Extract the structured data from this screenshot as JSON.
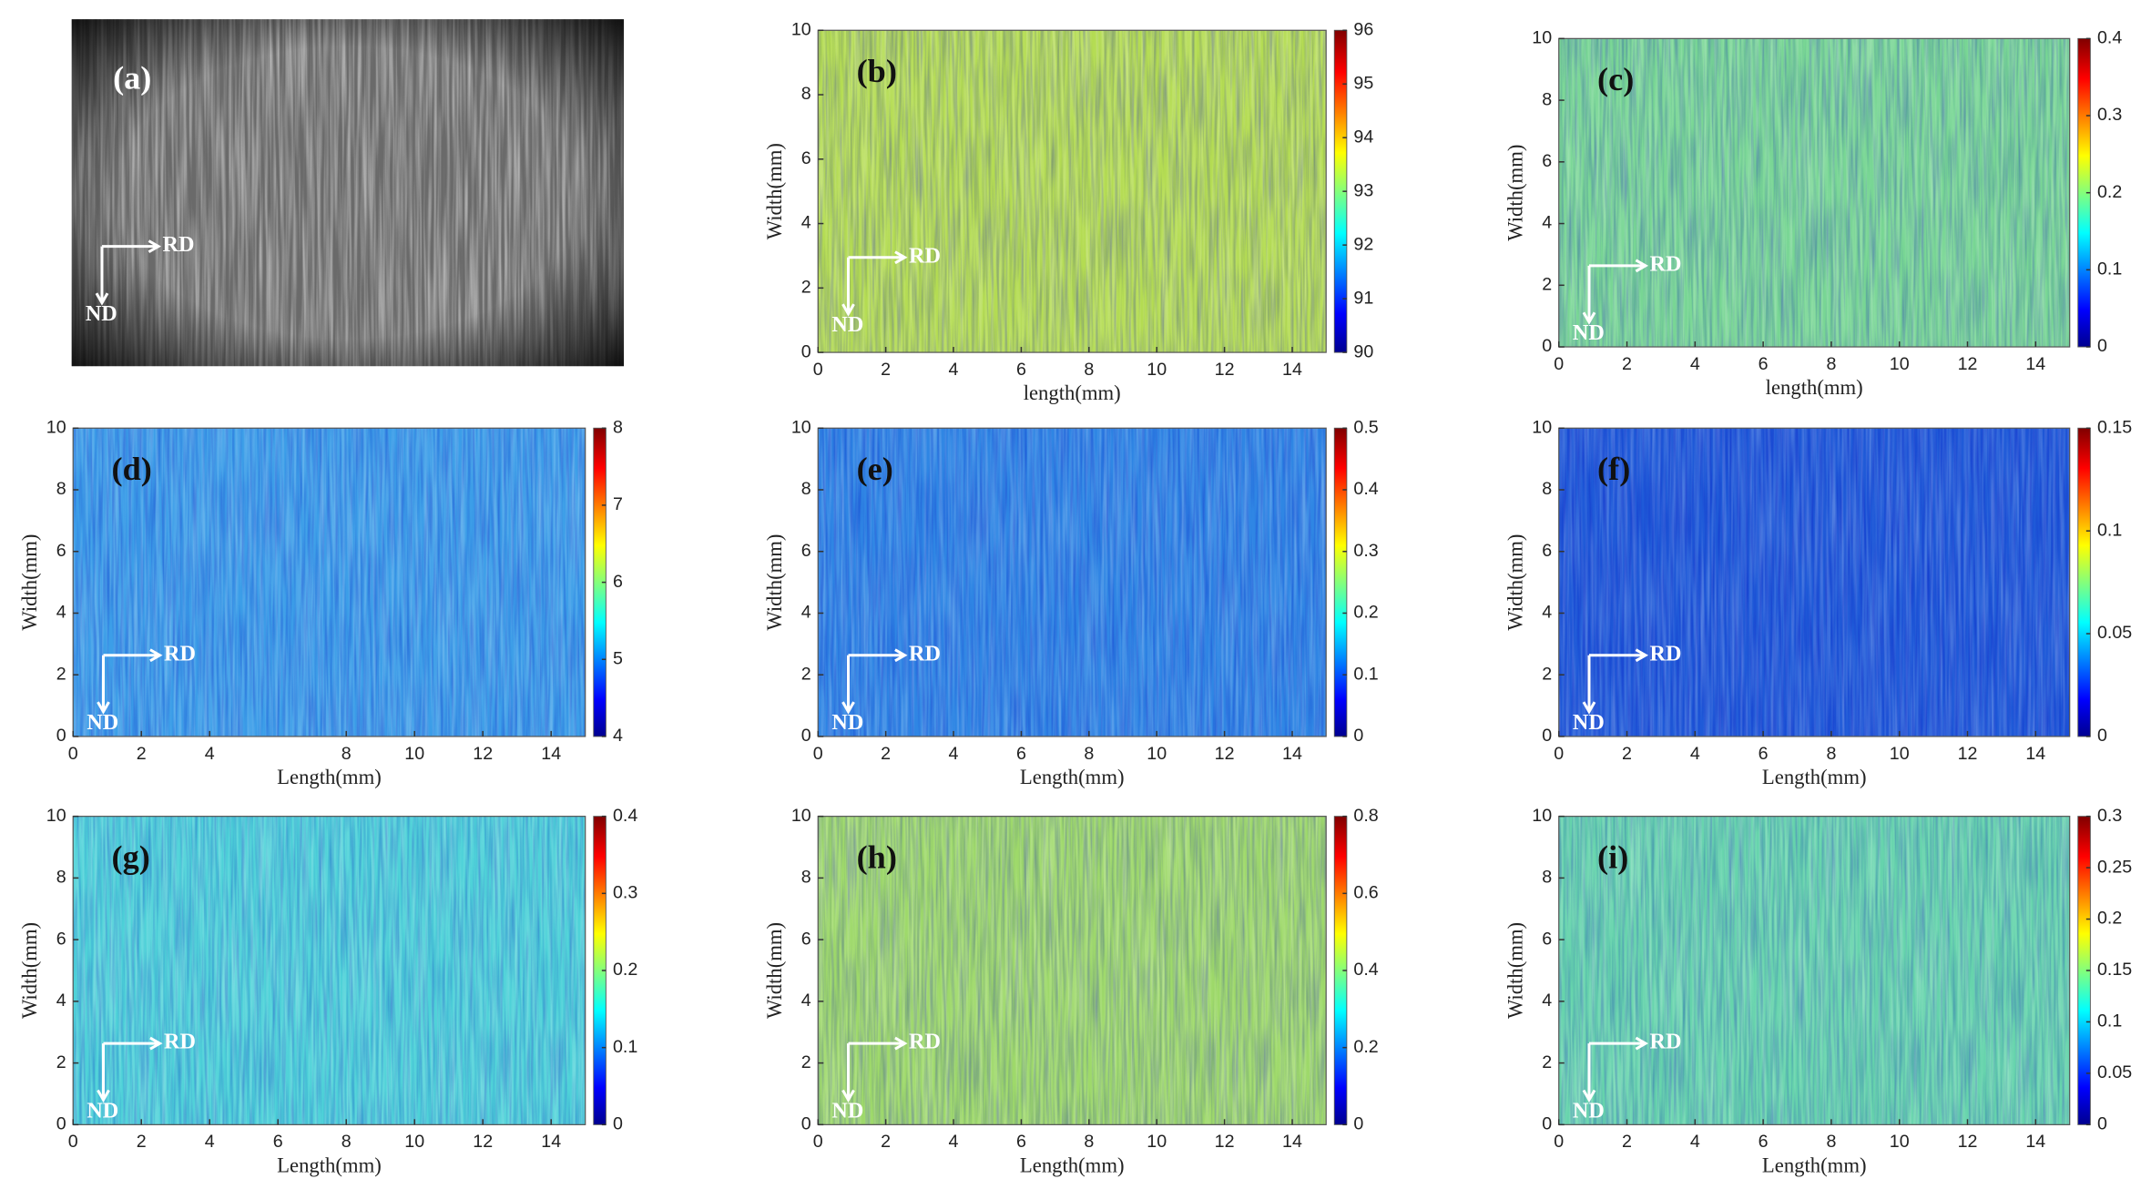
{
  "chart_data": [
    {
      "type": "image",
      "label": "(a)",
      "annotations": [
        "RD",
        "ND"
      ]
    },
    {
      "type": "heatmap",
      "label": "(b)",
      "xlabel": "length(mm)",
      "ylabel": "Width(mm)",
      "xlim": [
        0,
        15
      ],
      "xticks": [
        0,
        2,
        4,
        6,
        8,
        10,
        12,
        14
      ],
      "ylim": [
        0,
        10
      ],
      "yticks": [
        0,
        2,
        4,
        6,
        8,
        10
      ],
      "clim": [
        90,
        96
      ],
      "cticks": [
        90,
        91,
        92,
        93,
        94,
        95,
        96
      ],
      "colormap": "jet",
      "color": "#b4dc52",
      "annotations": [
        "RD",
        "ND"
      ]
    },
    {
      "type": "heatmap",
      "label": "(c)",
      "xlabel": "length(mm)",
      "ylabel": "Width(mm)",
      "xlim": [
        0,
        15
      ],
      "xticks": [
        0,
        2,
        4,
        6,
        8,
        10,
        12,
        14
      ],
      "ylim": [
        0,
        10
      ],
      "yticks": [
        0,
        2,
        4,
        6,
        8,
        10
      ],
      "clim": [
        0,
        0.4
      ],
      "cticks": [
        0,
        0.1,
        0.2,
        0.3,
        0.4
      ],
      "colormap": "jet",
      "color": "#78d694",
      "annotations": [
        "RD",
        "ND"
      ]
    },
    {
      "type": "heatmap",
      "label": "(d)",
      "xlabel": "Length(mm)",
      "ylabel": "Width(mm)",
      "xlim": [
        0,
        15
      ],
      "xticks": [
        0,
        2,
        4,
        8,
        10,
        12,
        14
      ],
      "ylim": [
        0,
        10
      ],
      "yticks": [
        0,
        2,
        4,
        6,
        8,
        10
      ],
      "clim": [
        4,
        8
      ],
      "cticks": [
        4,
        5,
        6,
        7,
        8
      ],
      "colormap": "jet",
      "color": "#3c9ee8",
      "annotations": [
        "RD",
        "ND"
      ]
    },
    {
      "type": "heatmap",
      "label": "(e)",
      "xlabel": "Length(mm)",
      "ylabel": "Width(mm)",
      "xlim": [
        0,
        15
      ],
      "xticks": [
        0,
        2,
        4,
        6,
        8,
        10,
        12,
        14
      ],
      "ylim": [
        0,
        10
      ],
      "yticks": [
        0,
        2,
        4,
        6,
        8,
        10
      ],
      "clim": [
        0,
        0.5
      ],
      "cticks": [
        0,
        0.1,
        0.2,
        0.3,
        0.4,
        0.5
      ],
      "colormap": "jet",
      "color": "#2f86e4",
      "annotations": [
        "RD",
        "ND"
      ]
    },
    {
      "type": "heatmap",
      "label": "(f)",
      "xlabel": "Length(mm)",
      "ylabel": "Width(mm)",
      "xlim": [
        0,
        15
      ],
      "xticks": [
        0,
        2,
        4,
        6,
        8,
        10,
        12,
        14
      ],
      "ylim": [
        0,
        10
      ],
      "yticks": [
        0,
        2,
        4,
        6,
        8,
        10
      ],
      "clim": [
        0,
        0.15
      ],
      "cticks": [
        0,
        0.05,
        0.1,
        0.15
      ],
      "colormap": "jet",
      "color": "#1f5ad8",
      "annotations": [
        "RD",
        "ND"
      ]
    },
    {
      "type": "heatmap",
      "label": "(g)",
      "xlabel": "Length(mm)",
      "ylabel": "Width(mm)",
      "xlim": [
        0,
        15
      ],
      "xticks": [
        0,
        2,
        4,
        6,
        8,
        10,
        12,
        14
      ],
      "ylim": [
        0,
        10
      ],
      "yticks": [
        0,
        2,
        4,
        6,
        8,
        10
      ],
      "clim": [
        0,
        0.4
      ],
      "cticks": [
        0,
        0.1,
        0.2,
        0.3,
        0.4
      ],
      "colormap": "jet",
      "color": "#4ed2d8",
      "annotations": [
        "RD",
        "ND"
      ]
    },
    {
      "type": "heatmap",
      "label": "(h)",
      "xlabel": "Length(mm)",
      "ylabel": "Width(mm)",
      "xlim": [
        0,
        15
      ],
      "xticks": [
        0,
        2,
        4,
        6,
        8,
        10,
        12,
        14
      ],
      "ylim": [
        0,
        10
      ],
      "yticks": [
        0,
        2,
        4,
        6,
        8,
        10
      ],
      "clim": [
        0,
        0.8
      ],
      "cticks": [
        0,
        0.2,
        0.4,
        0.6,
        0.8
      ],
      "colormap": "jet",
      "color": "#9ed96a",
      "annotations": [
        "RD",
        "ND"
      ]
    },
    {
      "type": "heatmap",
      "label": "(i)",
      "xlabel": "Length(mm)",
      "ylabel": "Width(mm)",
      "xlim": [
        0,
        15
      ],
      "xticks": [
        0,
        2,
        4,
        6,
        8,
        10,
        12,
        14
      ],
      "ylim": [
        0,
        10
      ],
      "yticks": [
        0,
        2,
        4,
        6,
        8,
        10
      ],
      "clim": [
        0,
        0.3
      ],
      "cticks": [
        0,
        0.05,
        0.1,
        0.15,
        0.2,
        0.25,
        0.3
      ],
      "colormap": "jet",
      "color": "#66d4ac",
      "annotations": [
        "RD",
        "ND"
      ]
    }
  ]
}
